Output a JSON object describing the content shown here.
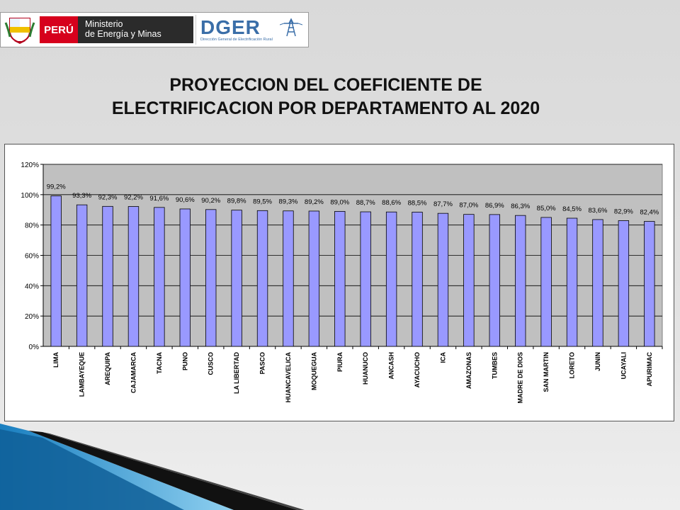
{
  "header": {
    "country": "PERÚ",
    "ministry_line1": "Ministerio",
    "ministry_line2": "de Energía y Minas",
    "dger": "DGER",
    "dger_sub": "Dirección General de Electrificación Rural"
  },
  "title_line1": "PROYECCION DEL COEFICIENTE DE",
  "title_line2": "ELECTRIFICACION POR DEPARTAMENTO AL 2020",
  "colors": {
    "bar": "#9999ff",
    "plot_bg": "#c0c0c0",
    "bar_border": "#000000"
  },
  "chart_data": {
    "type": "bar",
    "categories": [
      "LIMA",
      "LAMBAYEQUE",
      "AREQUIPA",
      "CAJAMARCA",
      "TACNA",
      "PUNO",
      "CUSCO",
      "LA LIBERTAD",
      "PASCO",
      "HUANCAVELICA",
      "MOQUEGUA",
      "PIURA",
      "HUANUCO",
      "ANCASH",
      "AYACUCHO",
      "ICA",
      "AMAZONAS",
      "TUMBES",
      "MADRE DE DIOS",
      "SAN MARTIN",
      "LORETO",
      "JUNIN",
      "UCAYALI",
      "APURIMAC"
    ],
    "values": [
      99.2,
      93.3,
      92.3,
      92.2,
      91.6,
      90.6,
      90.2,
      89.8,
      89.5,
      89.3,
      89.2,
      89.0,
      88.7,
      88.6,
      88.5,
      87.7,
      87.0,
      86.9,
      86.3,
      85.0,
      84.5,
      83.6,
      82.9,
      82.4
    ],
    "data_labels": [
      "99,2%",
      "93,3%",
      "92,3%",
      "92,2%",
      "91,6%",
      "90,6%",
      "90,2%",
      "89,8%",
      "89,5%",
      "89,3%",
      "89,2%",
      "89,0%",
      "88,7%",
      "88,6%",
      "88,5%",
      "87,7%",
      "87,0%",
      "86,9%",
      "86,3%",
      "85,0%",
      "84,5%",
      "83,6%",
      "82,9%",
      "82,4%"
    ],
    "y_ticks": [
      "0%",
      "20%",
      "40%",
      "60%",
      "80%",
      "100%",
      "120%"
    ],
    "ylim": [
      0,
      120
    ],
    "grid": true,
    "legend": "none"
  }
}
